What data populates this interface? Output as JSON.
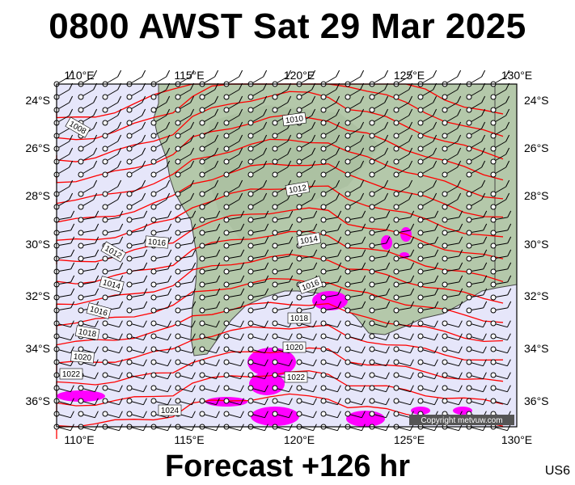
{
  "title": "0800 AWST Sat 29 Mar 2025",
  "footer": "Forecast +126 hr",
  "code": "US6",
  "copyright": "Copyright metvuw.com",
  "axes": {
    "lon_labels": [
      "110°E",
      "115°E",
      "120°E",
      "125°E",
      "130°E"
    ],
    "lat_labels": [
      "24°S",
      "26°S",
      "28°S",
      "30°S",
      "32°S",
      "34°S",
      "36°S"
    ]
  },
  "isobar_labels": [
    "1008",
    "1010",
    "1012",
    "1014",
    "1016",
    "1018",
    "1020",
    "1022",
    "1024"
  ],
  "colors": {
    "ocean": "#e6e6fa",
    "land": "#b4c8aa",
    "isobar": "#ff0000",
    "rain": "#ff00ff"
  }
}
